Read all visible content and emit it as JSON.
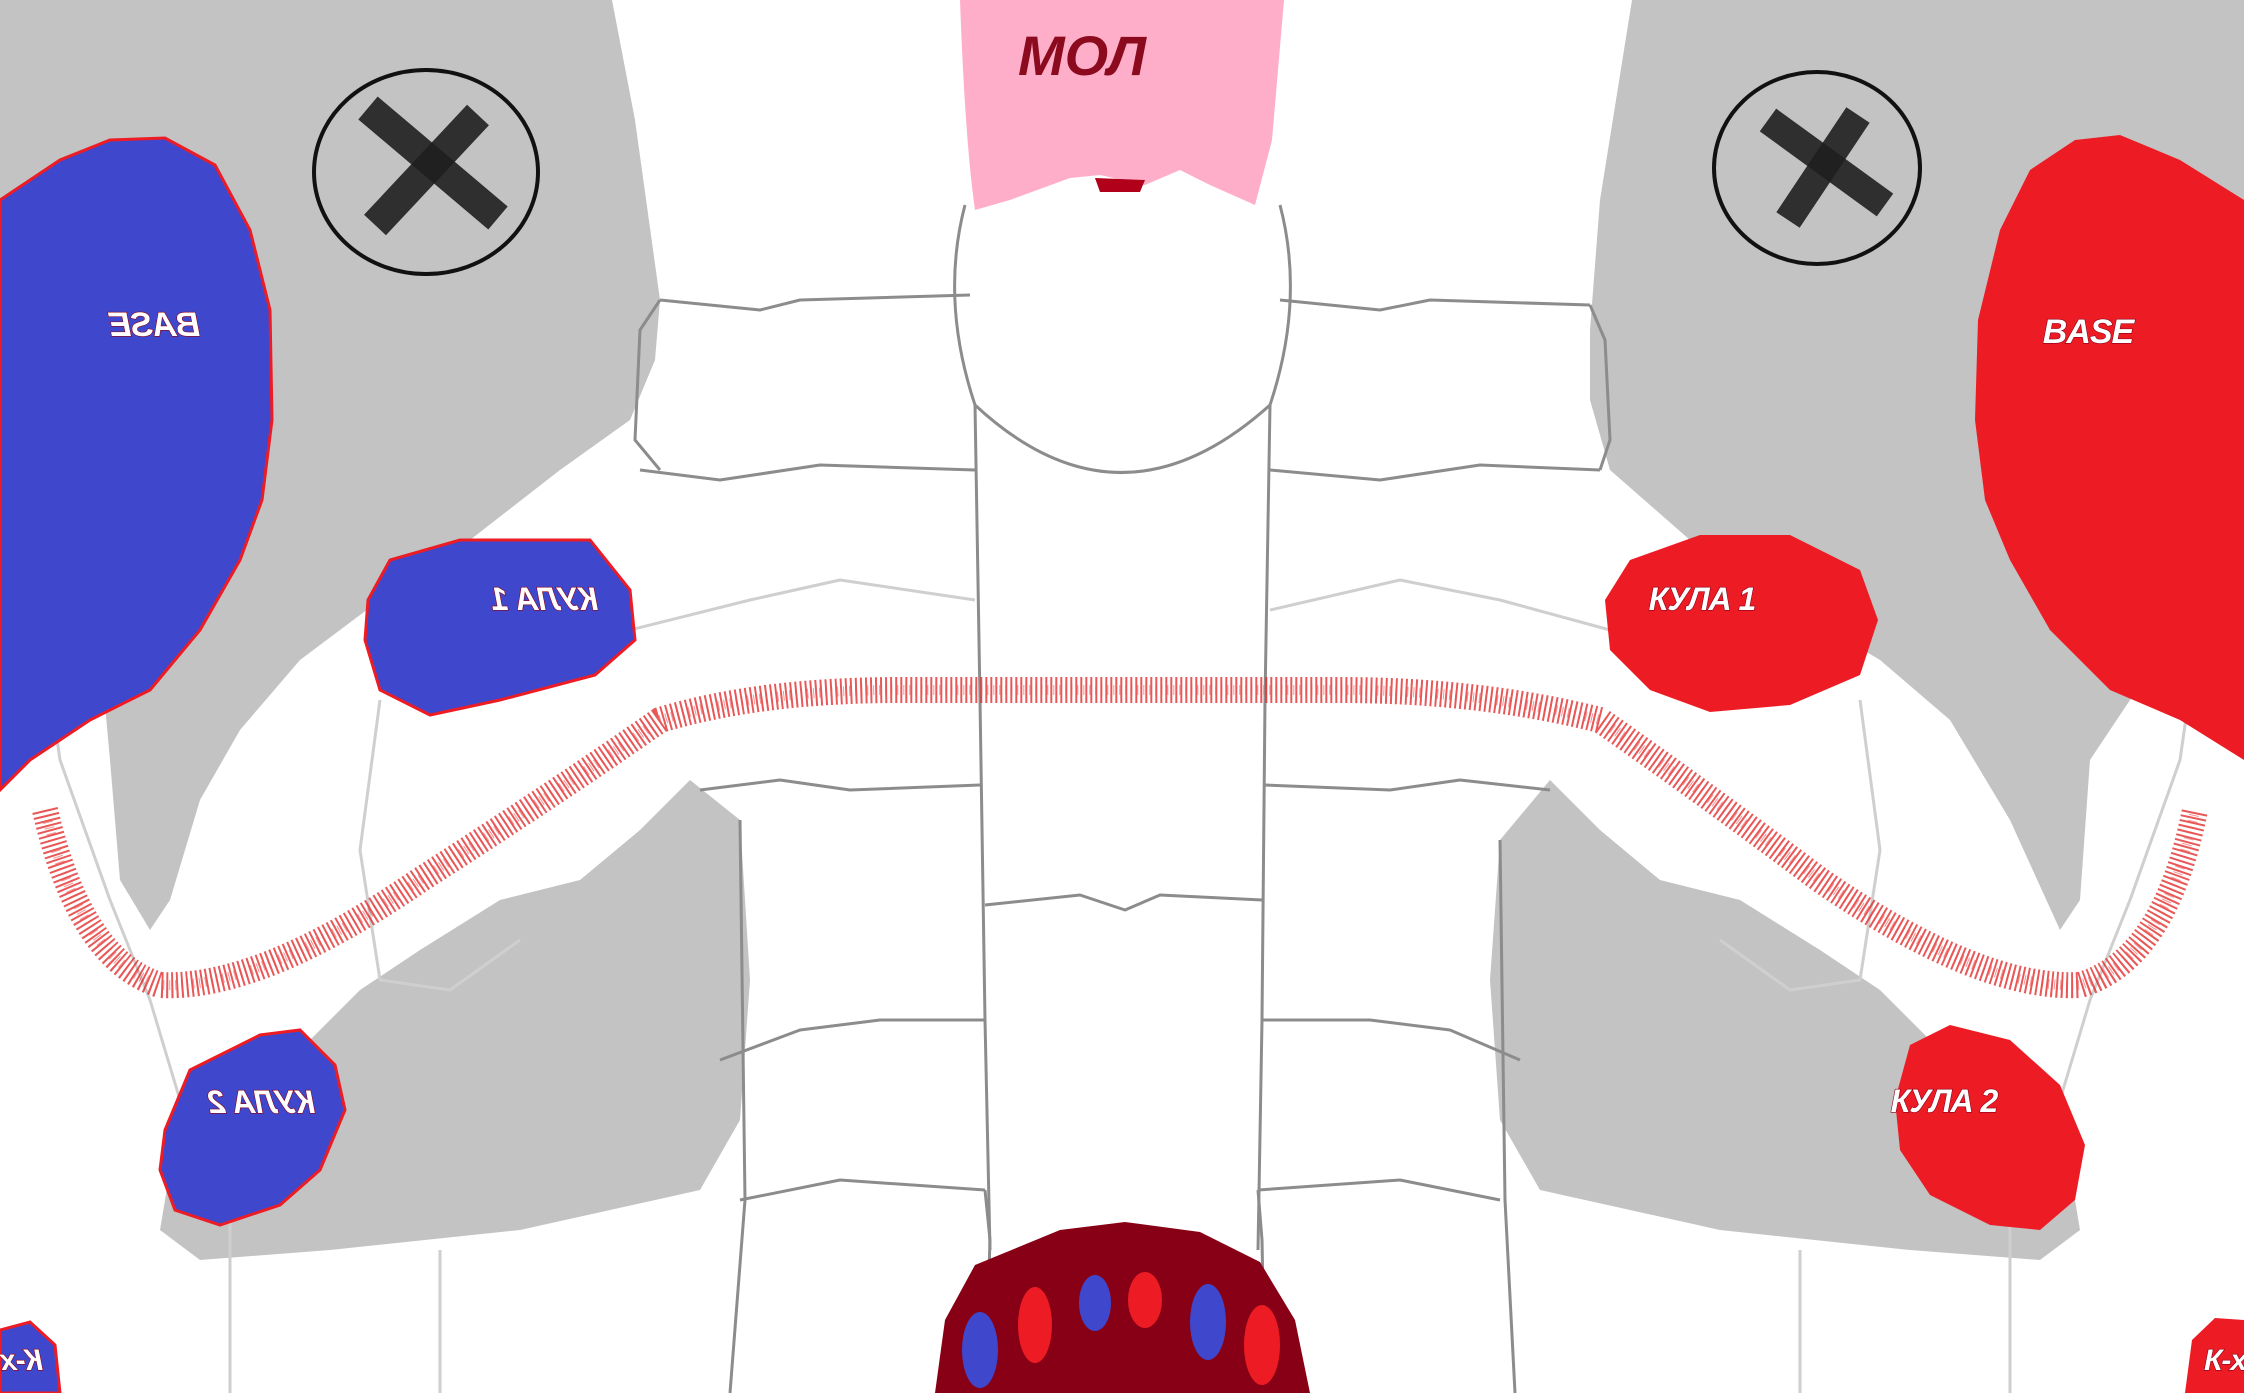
{
  "map": {
    "top_label": "МОЛ",
    "blue": {
      "base_label": "BASE",
      "tower1_label": "КУЛА 1",
      "tower2_label": "КУЛА 2",
      "corner_label": "К-х"
    },
    "red": {
      "base_label": "BASE",
      "tower1_label": "КУЛА 1",
      "tower2_label": "КУЛА 2",
      "corner_label": "К-х"
    },
    "icons": {
      "left_circle": "x-mark-icon",
      "right_circle": "x-mark-icon"
    },
    "colors": {
      "blue_team": "#3f48cc",
      "red_team": "#ed1c24",
      "mall_pink": "#ffaec9",
      "dark_red": "#880015",
      "gray_zone": "#c3c3c3"
    }
  }
}
